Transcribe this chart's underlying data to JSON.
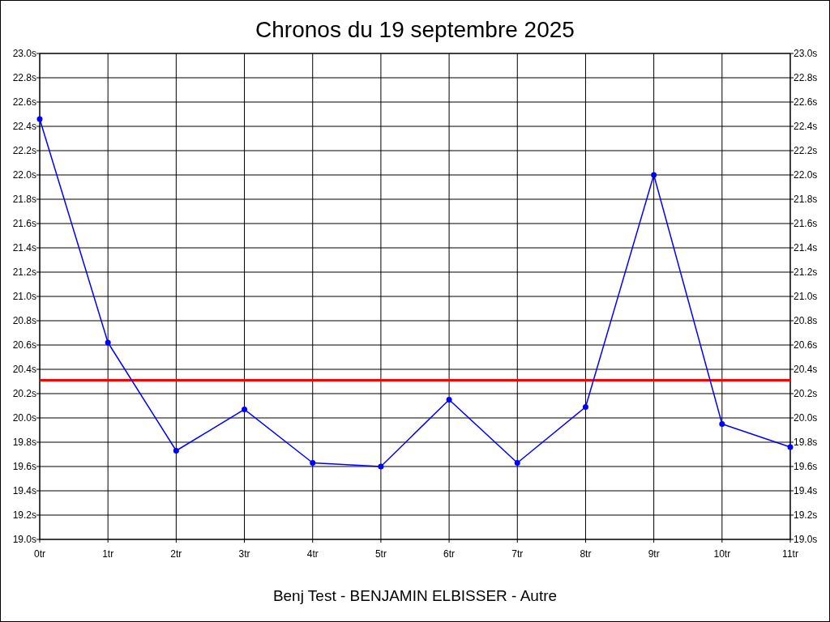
{
  "chart_data": {
    "type": "line",
    "title": "Chronos du 19 septembre 2025",
    "xlabel": "Benj Test - BENJAMIN ELBISSER - Autre",
    "x": [
      0,
      1,
      2,
      3,
      4,
      5,
      6,
      7,
      8,
      9,
      10,
      11
    ],
    "series": [
      {
        "color": "#0000ff",
        "values": [
          22.46,
          20.62,
          19.73,
          20.07,
          19.63,
          19.6,
          20.15,
          19.63,
          20.09,
          22.0,
          19.95,
          19.76
        ]
      }
    ],
    "xlim": [
      0,
      11
    ],
    "xticks": [
      {
        "value": 0,
        "label": "0tr"
      },
      {
        "value": 1,
        "label": "1tr"
      },
      {
        "value": 2,
        "label": "2tr"
      },
      {
        "value": 3,
        "label": "3tr"
      },
      {
        "value": 4,
        "label": "4tr"
      },
      {
        "value": 5,
        "label": "5tr"
      },
      {
        "value": 6,
        "label": "6tr"
      },
      {
        "value": 7,
        "label": "7tr"
      },
      {
        "value": 8,
        "label": "8tr"
      },
      {
        "value": 9,
        "label": "9tr"
      },
      {
        "value": 10,
        "label": "10tr"
      },
      {
        "value": 11,
        "label": "11tr"
      }
    ],
    "ylim": [
      19.0,
      23.0
    ],
    "yticks": [
      {
        "value": 19.0,
        "label": "19.0s"
      },
      {
        "value": 19.2,
        "label": "19.2s"
      },
      {
        "value": 19.4,
        "label": "19.4s"
      },
      {
        "value": 19.6,
        "label": "19.6s"
      },
      {
        "value": 19.8,
        "label": "19.8s"
      },
      {
        "value": 20.0,
        "label": "20.0s"
      },
      {
        "value": 20.2,
        "label": "20.2s"
      },
      {
        "value": 20.4,
        "label": "20.4s"
      },
      {
        "value": 20.6,
        "label": "20.6s"
      },
      {
        "value": 20.8,
        "label": "20.8s"
      },
      {
        "value": 21.0,
        "label": "21.0s"
      },
      {
        "value": 21.2,
        "label": "21.2s"
      },
      {
        "value": 21.4,
        "label": "21.4s"
      },
      {
        "value": 21.6,
        "label": "21.6s"
      },
      {
        "value": 21.8,
        "label": "21.8s"
      },
      {
        "value": 22.0,
        "label": "22.0s"
      },
      {
        "value": 22.2,
        "label": "22.2s"
      },
      {
        "value": 22.4,
        "label": "22.4s"
      },
      {
        "value": 22.6,
        "label": "22.6s"
      },
      {
        "value": 22.8,
        "label": "22.8s"
      },
      {
        "value": 23.0,
        "label": "23.0s"
      }
    ],
    "y2lim": [
      19.0,
      23.0
    ],
    "y2ticks": [
      {
        "value": 19.0,
        "label": "19.0s"
      },
      {
        "value": 19.2,
        "label": "19.2s"
      },
      {
        "value": 19.4,
        "label": "19.4s"
      },
      {
        "value": 19.6,
        "label": "19.6s"
      },
      {
        "value": 19.8,
        "label": "19.8s"
      },
      {
        "value": 20.0,
        "label": "20.0s"
      },
      {
        "value": 20.2,
        "label": "20.2s"
      },
      {
        "value": 20.4,
        "label": "20.4s"
      },
      {
        "value": 20.6,
        "label": "20.6s"
      },
      {
        "value": 20.8,
        "label": "20.8s"
      },
      {
        "value": 21.0,
        "label": "21.0s"
      },
      {
        "value": 21.2,
        "label": "21.2s"
      },
      {
        "value": 21.4,
        "label": "21.4s"
      },
      {
        "value": 21.6,
        "label": "21.6s"
      },
      {
        "value": 21.8,
        "label": "21.8s"
      },
      {
        "value": 22.0,
        "label": "22.0s"
      },
      {
        "value": 22.2,
        "label": "22.2s"
      },
      {
        "value": 22.4,
        "label": "22.4s"
      },
      {
        "value": 22.6,
        "label": "22.6s"
      },
      {
        "value": 22.8,
        "label": "22.8s"
      },
      {
        "value": 23.0,
        "label": "23.0s"
      }
    ],
    "ref_lines": [
      {
        "axis": "y",
        "value": 20.31,
        "color": "#ff0000"
      }
    ],
    "grid": true,
    "marker": "circle",
    "line_style": "solid"
  }
}
